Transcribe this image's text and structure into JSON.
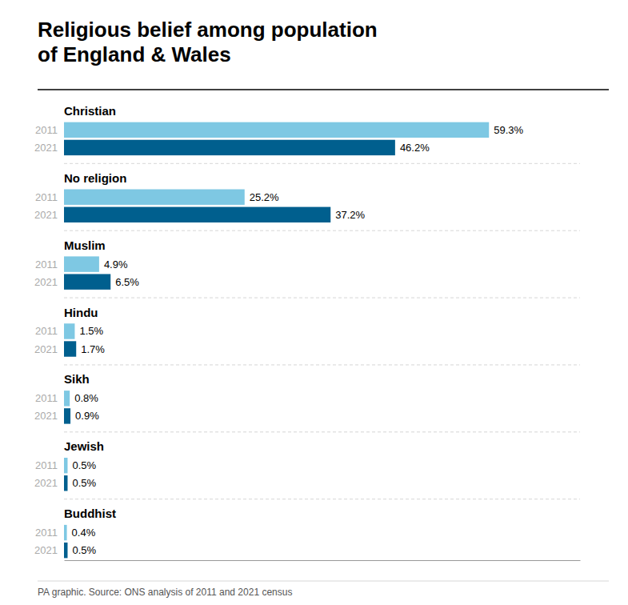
{
  "chart_data": {
    "type": "bar",
    "orientation": "horizontal",
    "title": "Religious belief among population\nof England & Wales",
    "categories": [
      "Christian",
      "No religion",
      "Muslim",
      "Hindu",
      "Sikh",
      "Jewish",
      "Buddhist"
    ],
    "series": [
      {
        "name": "2011",
        "color": "#7ec8e3",
        "values": [
          59.3,
          25.2,
          4.9,
          1.5,
          0.8,
          0.5,
          0.4
        ],
        "value_labels": [
          "59.3%",
          "25.2%",
          "4.9%",
          "1.5%",
          "0.8%",
          "0.5%",
          "0.4%"
        ]
      },
      {
        "name": "2021",
        "color": "#005f8e",
        "values": [
          46.2,
          37.2,
          6.5,
          1.7,
          0.9,
          0.5,
          0.5
        ],
        "value_labels": [
          "46.2%",
          "37.2%",
          "6.5%",
          "1.7%",
          "0.9%",
          "0.5%",
          "0.5%"
        ]
      }
    ],
    "xlim": [
      0,
      72
    ],
    "data_labels": true,
    "tick_labels": false,
    "annotations": [
      "PA graphic. Source: ONS analysis of 2011 and 2021 census"
    ]
  }
}
